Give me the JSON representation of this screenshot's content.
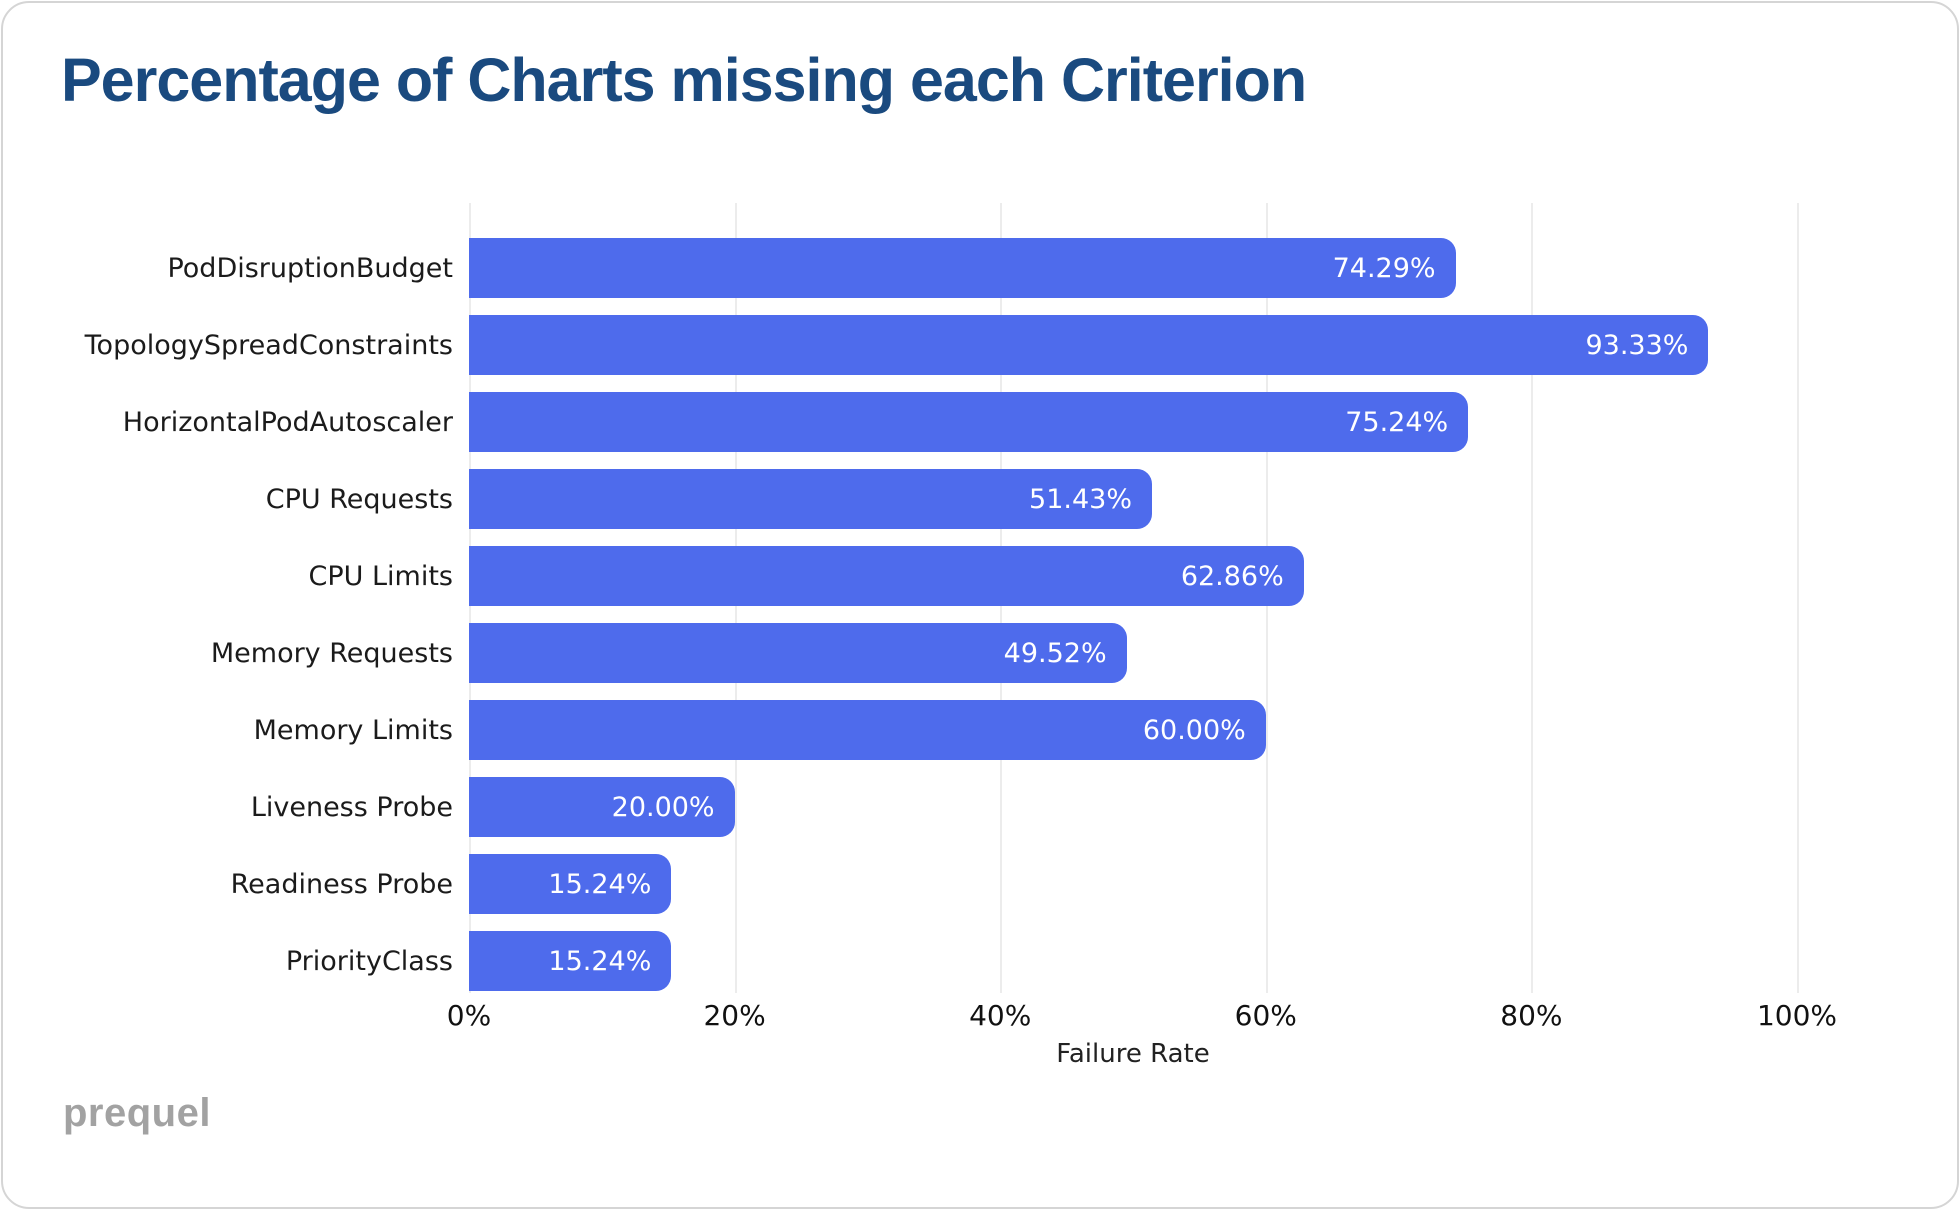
{
  "title": "Percentage of Charts missing each Criterion",
  "footer": {
    "logo_text": "prequel"
  },
  "colors": {
    "bar": "#4e6bec",
    "title": "#1a4a7f",
    "gridline": "#ececec",
    "value_label": "#ffffff",
    "category_label": "#1b1b1b",
    "logo": "#a2a2a2"
  },
  "chart_data": {
    "type": "bar",
    "orientation": "horizontal",
    "title": "Percentage of Charts missing each Criterion",
    "xlabel": "Failure Rate",
    "ylabel": "",
    "xlim": [
      0,
      100
    ],
    "grid": true,
    "categories": [
      "PodDisruptionBudget",
      "TopologySpreadConstraints",
      "HorizontalPodAutoscaler",
      "CPU Requests",
      "CPU Limits",
      "Memory Requests",
      "Memory Limits",
      "Liveness Probe",
      "Readiness Probe",
      "PriorityClass"
    ],
    "values": [
      74.29,
      93.33,
      75.24,
      51.43,
      62.86,
      49.52,
      60.0,
      20.0,
      15.24,
      15.24
    ],
    "value_labels": [
      "74.29%",
      "93.33%",
      "75.24%",
      "51.43%",
      "62.86%",
      "49.52%",
      "60.00%",
      "20.00%",
      "15.24%",
      "15.24%"
    ],
    "x_ticks": [
      {
        "value": 0,
        "label": "0%"
      },
      {
        "value": 20,
        "label": "20%"
      },
      {
        "value": 40,
        "label": "40%"
      },
      {
        "value": 60,
        "label": "60%"
      },
      {
        "value": 80,
        "label": "80%"
      },
      {
        "value": 100,
        "label": "100%"
      }
    ]
  }
}
